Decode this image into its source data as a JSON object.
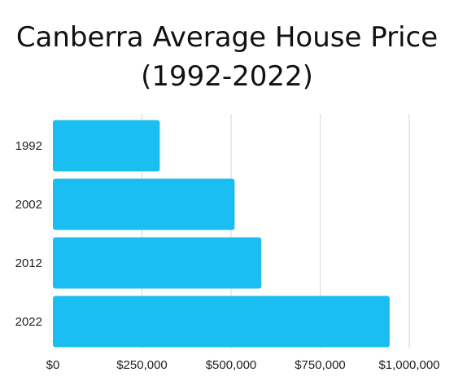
{
  "chart_data": {
    "type": "bar",
    "orientation": "horizontal",
    "title_line1": "Canberra Average House Price",
    "title_line2": "(1992-2022)",
    "categories": [
      "1992",
      "2002",
      "2012",
      "2022"
    ],
    "values": [
      300000,
      510000,
      585000,
      945000
    ],
    "xlim": [
      0,
      1000000
    ],
    "xticks": [
      0,
      250000,
      500000,
      750000,
      1000000
    ],
    "xtick_labels": [
      "$0",
      "$250,000",
      "$500,000",
      "$750,000",
      "$1,000,000"
    ],
    "grid": "vertical",
    "bar_color": "#1ABEF0",
    "grid_color": "#D6D6D6"
  }
}
